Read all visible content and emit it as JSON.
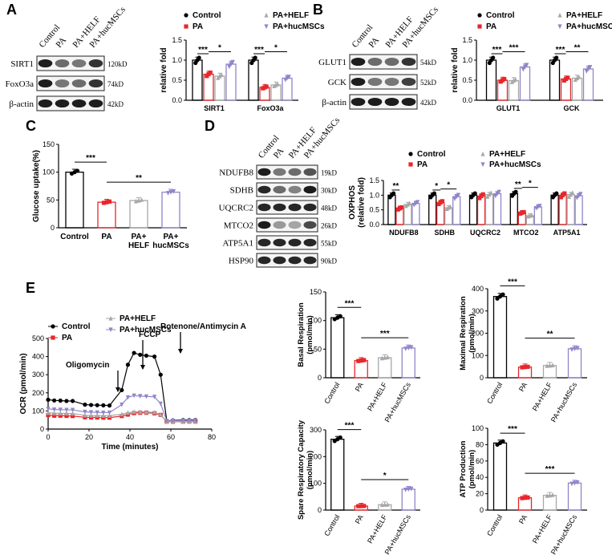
{
  "colors": {
    "control": "#000000",
    "pa": "#e8262b",
    "helf": "#a8a8a8",
    "huc": "#8f86c9"
  },
  "legend_labels": [
    "Control",
    "PA",
    "PA+HELF",
    "PA+hucMSCs"
  ],
  "panels": {
    "A": "A",
    "B": "B",
    "C": "C",
    "D": "D",
    "E": "E"
  },
  "blots": {
    "A": {
      "lanes": [
        "Control",
        "PA",
        "PA+HELF",
        "PA+hucMSCs"
      ],
      "bands": [
        {
          "name": "SIRT1",
          "kd": "120kD"
        },
        {
          "name": "FoxO3a",
          "kd": "74kD"
        },
        {
          "name": "β-actin",
          "kd": "42kD"
        }
      ]
    },
    "B": {
      "lanes": [
        "Control",
        "PA",
        "PA+HELF",
        "PA+hucMSCs"
      ],
      "bands": [
        {
          "name": "GLUT1",
          "kd": "54kD"
        },
        {
          "name": "GCK",
          "kd": "52kD"
        },
        {
          "name": "β-actin",
          "kd": "42kD"
        }
      ]
    },
    "D": {
      "lanes": [
        "Control",
        "PA",
        "PA+HELF",
        "PA+hucMSCs"
      ],
      "bands": [
        {
          "name": "NDUFB8",
          "kd": "19kD"
        },
        {
          "name": "SDHB",
          "kd": "30kD"
        },
        {
          "name": "UQCRC2",
          "kd": "48kD"
        },
        {
          "name": "MTCO2",
          "kd": "26kD"
        },
        {
          "name": "ATP5A1",
          "kd": "55kD"
        },
        {
          "name": "HSP90",
          "kd": "90kD"
        }
      ]
    }
  },
  "chart_data": [
    {
      "id": "A",
      "type": "bar",
      "ylabel": "relative fold",
      "ylim": [
        0,
        1.5
      ],
      "yticks": [
        0,
        0.5,
        1.0,
        1.5
      ],
      "categories": [
        "SIRT1",
        "FoxO3a"
      ],
      "series": [
        {
          "name": "Control",
          "values": [
            1.0,
            1.0
          ]
        },
        {
          "name": "PA",
          "values": [
            0.65,
            0.32
          ]
        },
        {
          "name": "PA+HELF",
          "values": [
            0.6,
            0.38
          ]
        },
        {
          "name": "PA+hucMSCs",
          "values": [
            0.9,
            0.55
          ]
        }
      ],
      "sig": [
        {
          "cat": 0,
          "from": 0,
          "to": 1,
          "label": "***"
        },
        {
          "cat": 0,
          "from": 1,
          "to": 3,
          "label": "*"
        },
        {
          "cat": 1,
          "from": 0,
          "to": 1,
          "label": "***"
        },
        {
          "cat": 1,
          "from": 1,
          "to": 3,
          "label": "*"
        }
      ]
    },
    {
      "id": "B",
      "type": "bar",
      "ylabel": "relative fold",
      "ylim": [
        0,
        1.5
      ],
      "yticks": [
        0,
        0.5,
        1.0,
        1.5
      ],
      "categories": [
        "GLUT1",
        "GCK"
      ],
      "series": [
        {
          "name": "Control",
          "values": [
            1.0,
            1.0
          ]
        },
        {
          "name": "PA",
          "values": [
            0.5,
            0.53
          ]
        },
        {
          "name": "PA+HELF",
          "values": [
            0.49,
            0.55
          ]
        },
        {
          "name": "PA+hucMSCs",
          "values": [
            0.83,
            0.78
          ]
        }
      ],
      "sig": [
        {
          "cat": 0,
          "from": 0,
          "to": 1,
          "label": "***"
        },
        {
          "cat": 0,
          "from": 1,
          "to": 3,
          "label": "***"
        },
        {
          "cat": 1,
          "from": 0,
          "to": 1,
          "label": "***"
        },
        {
          "cat": 1,
          "from": 1,
          "to": 3,
          "label": "**"
        }
      ]
    },
    {
      "id": "C",
      "type": "bar",
      "ylabel": "Glucose uptake(%)",
      "ylim": [
        0,
        150
      ],
      "yticks": [
        0,
        50,
        100,
        150
      ],
      "categories": [
        "Control",
        "PA",
        "PA+ HELF",
        "PA+ hucMSCs"
      ],
      "values": [
        100,
        46,
        49,
        64
      ],
      "sig": [
        {
          "from": 0,
          "to": 1,
          "label": "***"
        },
        {
          "from": 1,
          "to": 3,
          "label": "**"
        }
      ]
    },
    {
      "id": "D",
      "type": "bar",
      "ylabel": "OXPHOS (relative fold)",
      "ylim": [
        0,
        1.5
      ],
      "yticks": [
        0,
        0.5,
        1.0,
        1.5
      ],
      "categories": [
        "NDUFB8",
        "SDHB",
        "UQCRC2",
        "MTCO2",
        "ATP5A1"
      ],
      "series": [
        {
          "name": "Control",
          "values": [
            1.0,
            1.0,
            1.0,
            1.05,
            1.0
          ]
        },
        {
          "name": "PA",
          "values": [
            0.55,
            0.75,
            0.97,
            0.4,
            1.0
          ]
        },
        {
          "name": "PA+HELF",
          "values": [
            0.68,
            0.57,
            1.02,
            0.3,
            1.02
          ]
        },
        {
          "name": "PA+hucMSCs",
          "values": [
            0.72,
            0.95,
            1.05,
            0.6,
            0.98
          ]
        }
      ],
      "sig": [
        {
          "cat": 0,
          "from": 0,
          "to": 1,
          "label": "**"
        },
        {
          "cat": 1,
          "from": 0,
          "to": 1,
          "label": "*"
        },
        {
          "cat": 1,
          "from": 1,
          "to": 3,
          "label": "*"
        },
        {
          "cat": 3,
          "from": 0,
          "to": 1,
          "label": "**"
        },
        {
          "cat": 3,
          "from": 1,
          "to": 3,
          "label": "*"
        }
      ]
    },
    {
      "id": "E-ocr",
      "type": "line",
      "xlabel": "Time (minutes)",
      "ylabel": "OCR (pmol/min)",
      "xlim": [
        0,
        80
      ],
      "ylim": [
        0,
        500
      ],
      "xticks": [
        0,
        20,
        40,
        60,
        80
      ],
      "yticks": [
        0,
        100,
        200,
        300,
        400,
        500
      ],
      "x": [
        0,
        3,
        6,
        9,
        12,
        18,
        21,
        24,
        27,
        30,
        36,
        39,
        42,
        45,
        48,
        52,
        55,
        58,
        61,
        66,
        69,
        72
      ],
      "series": [
        {
          "name": "Control",
          "values": [
            162,
            158,
            157,
            155,
            155,
            135,
            133,
            132,
            131,
            130,
            215,
            355,
            420,
            410,
            405,
            400,
            300,
            45,
            48,
            50,
            50,
            50
          ]
        },
        {
          "name": "PA",
          "values": [
            77,
            74,
            74,
            73,
            72,
            65,
            64,
            64,
            63,
            63,
            72,
            80,
            88,
            90,
            90,
            87,
            78,
            40,
            40,
            41,
            41,
            41
          ]
        },
        {
          "name": "PA+HELF",
          "values": [
            90,
            88,
            87,
            87,
            86,
            76,
            75,
            75,
            74,
            74,
            82,
            90,
            95,
            95,
            94,
            92,
            80,
            40,
            41,
            41,
            41,
            41
          ]
        },
        {
          "name": "PA+hucMSCs",
          "values": [
            112,
            108,
            107,
            106,
            106,
            95,
            93,
            92,
            91,
            91,
            135,
            175,
            185,
            182,
            180,
            178,
            140,
            45,
            46,
            47,
            47,
            47
          ]
        }
      ],
      "annotations": [
        "Oligomycin",
        "FCCP",
        "Rotenone/Antimycin A"
      ]
    },
    {
      "id": "E-basal",
      "type": "bar",
      "ylabel": "Basal Respiration (pmol/min)",
      "ylim": [
        0,
        150
      ],
      "yticks": [
        0,
        50,
        100,
        150
      ],
      "categories": [
        "Control",
        "PA",
        "PA+HELF",
        "PA+hucMSCs"
      ],
      "values": [
        105,
        30,
        35,
        52
      ],
      "sig": [
        {
          "from": 0,
          "to": 1,
          "label": "***"
        },
        {
          "from": 1,
          "to": 3,
          "label": "***"
        }
      ]
    },
    {
      "id": "E-maximal",
      "type": "bar",
      "ylabel": "Maximal Respiration (pmol/min)",
      "ylim": [
        0,
        400
      ],
      "yticks": [
        0,
        100,
        200,
        300,
        400
      ],
      "categories": [
        "Control",
        "PA",
        "PA+HELF",
        "PA+hucMSCs"
      ],
      "values": [
        365,
        48,
        55,
        130
      ],
      "sig": [
        {
          "from": 0,
          "to": 1,
          "label": "***"
        },
        {
          "from": 1,
          "to": 3,
          "label": "**"
        }
      ]
    },
    {
      "id": "E-spare",
      "type": "bar",
      "ylabel": "Spare Respiratory Capacity (pmol/min)",
      "ylim": [
        0,
        300
      ],
      "yticks": [
        0,
        100,
        200,
        300
      ],
      "categories": [
        "Control",
        "PA",
        "PA+HELF",
        "PA+hucMSCs"
      ],
      "values": [
        265,
        15,
        20,
        78
      ],
      "sig": [
        {
          "from": 0,
          "to": 1,
          "label": "***"
        },
        {
          "from": 1,
          "to": 3,
          "label": "*"
        }
      ]
    },
    {
      "id": "E-atp",
      "type": "bar",
      "ylabel": "ATP Production (pmol/min)",
      "ylim": [
        0,
        100
      ],
      "yticks": [
        0,
        20,
        40,
        60,
        80,
        100
      ],
      "categories": [
        "Control",
        "PA",
        "PA+HELF",
        "PA+hucMSCs"
      ],
      "values": [
        82,
        15,
        18,
        33
      ],
      "sig": [
        {
          "from": 0,
          "to": 1,
          "label": "***"
        },
        {
          "from": 1,
          "to": 3,
          "label": "***"
        }
      ]
    }
  ]
}
